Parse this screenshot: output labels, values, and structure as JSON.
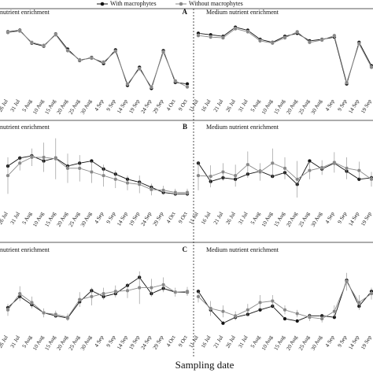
{
  "legend": [
    {
      "name": "With macrophytes",
      "color": "#111111"
    },
    {
      "name": "Without macrophytes",
      "color": "#888888"
    }
  ],
  "xlabel": "Sampling date",
  "chart_data": [
    {
      "type": "line",
      "title": "nutrient enrichment",
      "ylim": [
        0,
        100
      ],
      "categories": [
        "26 Jul",
        "31 Jul",
        "5 Aug",
        "10 Aug",
        "15 Aug",
        "20 Aug",
        "25 Aug",
        "30 Aug",
        "4 Sep",
        "9 Sep",
        "14 Sep",
        "19 Sep",
        "24 Sep",
        "29 Sep",
        "4 Oct",
        "9 Oct"
      ],
      "series": [
        {
          "color": "#111111",
          "values": [
            85,
            87,
            70,
            66,
            82,
            62,
            47,
            51,
            43,
            61,
            14,
            38,
            10,
            60,
            18,
            16
          ]
        },
        {
          "color": "#888888",
          "values": [
            84,
            86,
            71,
            67,
            81,
            60,
            48,
            50,
            45,
            59,
            16,
            36,
            12,
            58,
            20,
            12
          ]
        }
      ]
    },
    {
      "type": "line",
      "title": "Medium nutrient enrichment",
      "panel_label": "A",
      "ylim": [
        0,
        100
      ],
      "categories": [
        "11 Jul",
        "16 Jul",
        "21 Jul",
        "26 Jul",
        "31 Jul",
        "5 Aug",
        "10 Aug",
        "15 Aug",
        "20 Aug",
        "25 Aug",
        "30 Aug",
        "4 Sep",
        "9 Sep",
        "14 Sep",
        "19 Sep"
      ],
      "series": [
        {
          "color": "#111111",
          "values": [
            83,
            81,
            79,
            91,
            87,
            75,
            71,
            79,
            83,
            73,
            75,
            78,
            16,
            71,
            40
          ]
        },
        {
          "color": "#888888",
          "values": [
            80,
            78,
            77,
            89,
            85,
            73,
            70,
            77,
            85,
            71,
            74,
            80,
            18,
            69,
            38
          ]
        }
      ]
    },
    {
      "type": "line",
      "title": "nutrient enrichment",
      "ylim": [
        0,
        100
      ],
      "categories": [
        "26 Jul",
        "31 Jul",
        "5 Aug",
        "10 Aug",
        "15 Aug",
        "20 Aug",
        "25 Aug",
        "30 Aug",
        "4 Sep",
        "9 Sep",
        "14 Sep",
        "19 Sep",
        "24 Sep",
        "29 Sep",
        "4 Oct",
        "9 Oct"
      ],
      "series": [
        {
          "color": "#111111",
          "values": [
            58,
            69,
            72,
            65,
            69,
            58,
            62,
            65,
            54,
            47,
            40,
            36,
            29,
            22,
            20,
            20
          ]
        },
        {
          "color": "#888888",
          "values": [
            45,
            62,
            70,
            70,
            68,
            55,
            55,
            50,
            45,
            40,
            35,
            33,
            26,
            25,
            22,
            22
          ],
          "errors": [
            25,
            10,
            12,
            20,
            28,
            20,
            18,
            15,
            15,
            12,
            10,
            12,
            8,
            6,
            5,
            5
          ]
        }
      ]
    },
    {
      "type": "line",
      "title": "Medium nutrient enrichment",
      "panel_label": "B",
      "ylim": [
        0,
        100
      ],
      "categories": [
        "11 Jul",
        "16 Jul",
        "21 Jul",
        "26 Jul",
        "31 Jul",
        "5 Aug",
        "10 Aug",
        "15 Aug",
        "20 Aug",
        "25 Aug",
        "30 Aug",
        "4 Sep",
        "9 Sep",
        "14 Sep",
        "19 Sep"
      ],
      "series": [
        {
          "color": "#111111",
          "values": [
            62,
            37,
            42,
            40,
            47,
            51,
            44,
            49,
            33,
            65,
            54,
            62,
            51,
            40,
            42
          ]
        },
        {
          "color": "#888888",
          "values": [
            45,
            44,
            50,
            45,
            60,
            50,
            62,
            55,
            40,
            52,
            56,
            63,
            55,
            52,
            40
          ],
          "errors": [
            20,
            15,
            12,
            15,
            18,
            12,
            20,
            15,
            25,
            12,
            10,
            14,
            15,
            12,
            10
          ]
        }
      ]
    },
    {
      "type": "line",
      "title": "nutrient enrichment",
      "ylim": [
        0,
        100
      ],
      "categories": [
        "26 Jul",
        "31 Jul",
        "5 Aug",
        "10 Aug",
        "15 Aug",
        "20 Aug",
        "25 Aug",
        "30 Aug",
        "4 Sep",
        "9 Sep",
        "14 Sep",
        "19 Sep",
        "24 Sep",
        "29 Sep",
        "4 Oct",
        "9 Oct"
      ],
      "series": [
        {
          "color": "#111111",
          "values": [
            33,
            48,
            37,
            26,
            22,
            19,
            41,
            56,
            48,
            52,
            63,
            74,
            52,
            59,
            54,
            54
          ]
        },
        {
          "color": "#888888",
          "values": [
            30,
            52,
            40,
            26,
            24,
            20,
            44,
            48,
            52,
            55,
            56,
            60,
            60,
            64,
            54,
            55
          ],
          "errors": [
            8,
            10,
            8,
            6,
            5,
            5,
            10,
            12,
            8,
            8,
            10,
            22,
            12,
            10,
            6,
            6
          ]
        }
      ]
    },
    {
      "type": "line",
      "title": "Medium nutrient enrichment",
      "panel_label": "C",
      "ylim": [
        0,
        100
      ],
      "categories": [
        "11 Jul",
        "16 Jul",
        "21 Jul",
        "26 Jul",
        "31 Jul",
        "5 Aug",
        "10 Aug",
        "15 Aug",
        "20 Aug",
        "25 Aug",
        "30 Aug",
        "4 Sep",
        "9 Sep",
        "14 Sep",
        "19 Sep"
      ],
      "series": [
        {
          "color": "#111111",
          "values": [
            55,
            30,
            12,
            20,
            24,
            30,
            35,
            18,
            15,
            22,
            22,
            20,
            70,
            35,
            55
          ]
        },
        {
          "color": "#888888",
          "values": [
            48,
            32,
            28,
            22,
            30,
            40,
            42,
            30,
            25,
            20,
            18,
            28,
            68,
            40,
            52
          ],
          "errors": [
            8,
            10,
            8,
            6,
            8,
            10,
            8,
            6,
            5,
            5,
            5,
            8,
            12,
            10,
            8
          ]
        }
      ]
    }
  ]
}
